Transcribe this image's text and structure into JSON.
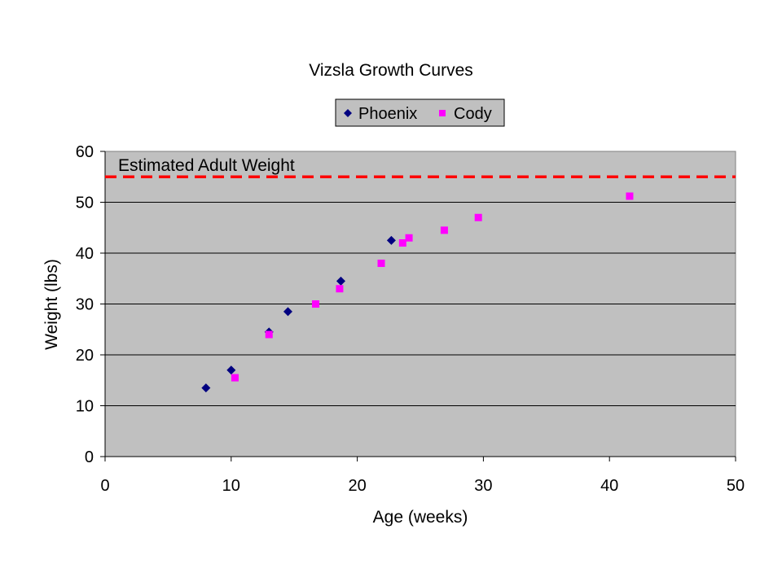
{
  "chart_data": {
    "type": "scatter",
    "title": "Vizsla Growth Curves",
    "xlabel": "Age (weeks)",
    "ylabel": "Weight (lbs)",
    "xlim": [
      0,
      50
    ],
    "ylim": [
      0,
      60
    ],
    "x_ticks": [
      0,
      10,
      20,
      30,
      40,
      50
    ],
    "y_ticks": [
      0,
      10,
      20,
      30,
      40,
      50,
      60
    ],
    "grid": "horizontal",
    "legend_position": "top-center",
    "plot_background": "#c0c0c0",
    "series": [
      {
        "name": "Phoenix",
        "marker": "diamond",
        "color": "#000080",
        "points": [
          {
            "x": 8,
            "y": 13.5
          },
          {
            "x": 10,
            "y": 17
          },
          {
            "x": 13,
            "y": 24.5
          },
          {
            "x": 14.5,
            "y": 28.5
          },
          {
            "x": 18.7,
            "y": 34.5
          },
          {
            "x": 22.7,
            "y": 42.5
          }
        ]
      },
      {
        "name": "Cody",
        "marker": "square",
        "color": "#ff00ff",
        "points": [
          {
            "x": 10.3,
            "y": 15.5
          },
          {
            "x": 13,
            "y": 24
          },
          {
            "x": 16.7,
            "y": 30
          },
          {
            "x": 18.6,
            "y": 33
          },
          {
            "x": 21.9,
            "y": 38
          },
          {
            "x": 23.6,
            "y": 42
          },
          {
            "x": 24.1,
            "y": 43
          },
          {
            "x": 26.9,
            "y": 44.5
          },
          {
            "x": 29.6,
            "y": 47
          },
          {
            "x": 41.6,
            "y": 51.2
          }
        ]
      }
    ],
    "reference_line": {
      "label": "Estimated Adult Weight",
      "y": 55,
      "color": "#ff0000",
      "style": "dashed"
    }
  }
}
